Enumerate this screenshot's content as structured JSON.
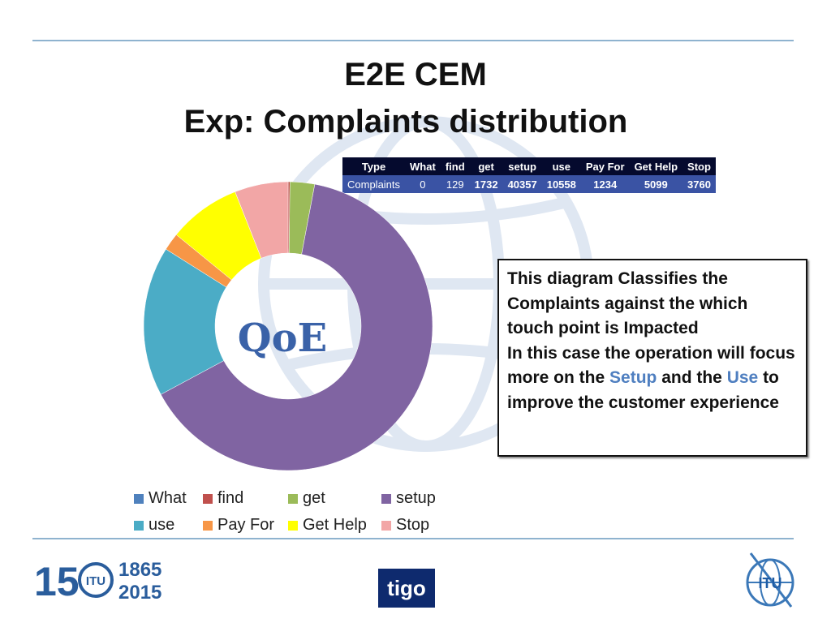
{
  "title": {
    "line1": "E2E CEM",
    "line2": "Exp: Complaints distribution"
  },
  "table": {
    "headers": [
      "Type",
      "What",
      "find",
      "get",
      "setup",
      "use",
      "Pay For",
      "Get Help",
      "Stop"
    ],
    "row": [
      "Complaints",
      "0",
      "129",
      "1732",
      "40357",
      "10558",
      "1234",
      "5099",
      "3760"
    ]
  },
  "chart_data": {
    "type": "pie",
    "variant": "doughnut",
    "center_label": "QoE",
    "categories": [
      "What",
      "find",
      "get",
      "setup",
      "use",
      "Pay For",
      "Get Help",
      "Stop"
    ],
    "values": [
      0,
      129,
      1732,
      40357,
      10558,
      1234,
      5099,
      3760
    ],
    "colors": [
      "#4f81bd",
      "#c0504d",
      "#9bbb59",
      "#8064a2",
      "#4bacc6",
      "#f79646",
      "#ffff00",
      "#f2a6a6"
    ],
    "legend_position": "bottom"
  },
  "note": {
    "line1": "This diagram Classifies the Complaints against the which touch point is Impacted",
    "line2_prefix": "In this case the operation will focus more on the ",
    "highlight1": "Setup",
    "line2_mid": " and the ",
    "highlight2": "Use",
    "line2_suffix": " to improve the customer experience"
  },
  "footer": {
    "years_top": "1865",
    "years_bottom": "2015",
    "anniversary": "15",
    "itu_text": "ITU",
    "partner": "tigo"
  }
}
